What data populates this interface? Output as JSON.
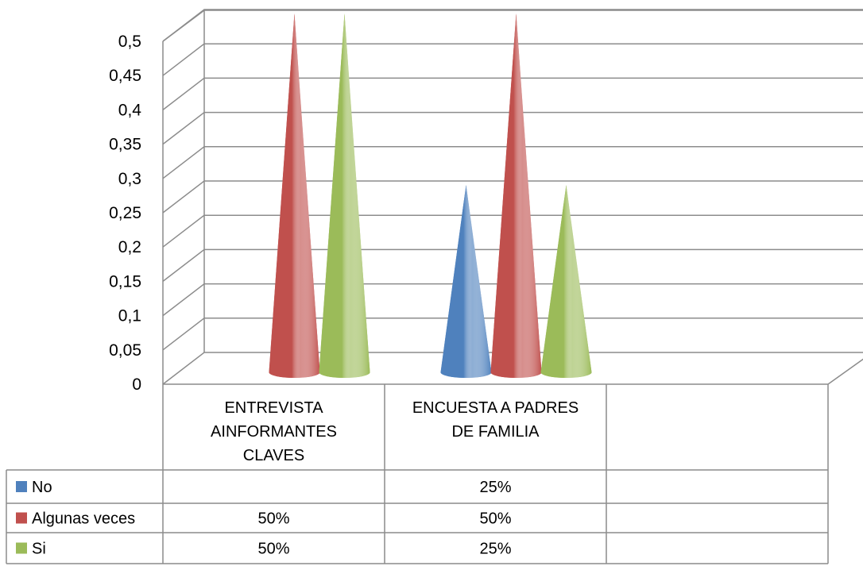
{
  "chart_data": {
    "type": "bar",
    "style": "3d-cone",
    "categories": [
      "ENTREVISTA AINFORMANTES CLAVES",
      "ENCUESTA A PADRES DE FAMILIA",
      ""
    ],
    "category_lines": [
      [
        "ENTREVISTA",
        "AINFORMANTES",
        "CLAVES"
      ],
      [
        "ENCUESTA A PADRES",
        "DE FAMILIA"
      ],
      []
    ],
    "series": [
      {
        "name": "No",
        "values": [
          null,
          0.25,
          null
        ],
        "labels": [
          "",
          "25%",
          ""
        ],
        "color": "#4f81bd"
      },
      {
        "name": "Algunas veces",
        "values": [
          0.5,
          0.5,
          null
        ],
        "labels": [
          "50%",
          "50%",
          ""
        ],
        "color": "#c0504d"
      },
      {
        "name": "Si",
        "values": [
          0.5,
          0.25,
          null
        ],
        "labels": [
          "50%",
          "25%",
          ""
        ],
        "color": "#9bbb59"
      }
    ],
    "yticks": [
      "0",
      "0,05",
      "0,1",
      "0,15",
      "0,2",
      "0,25",
      "0,3",
      "0,35",
      "0,4",
      "0,45",
      "0,5"
    ],
    "ylim": [
      0,
      0.5
    ],
    "grid": true,
    "legend": "data-table-left"
  }
}
